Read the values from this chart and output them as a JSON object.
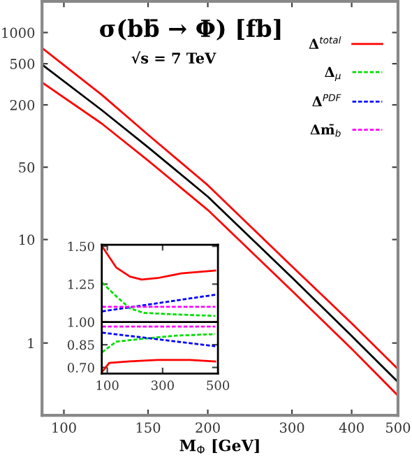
{
  "chart_data": [
    {
      "type": "line",
      "title": "σ(bb̄ → Φ) [fb]",
      "subtitle": "√s = 7 TeV",
      "xlabel": "M$_{Φ}$ [GeV]",
      "log": "xy",
      "xlim": [
        90,
        500
      ],
      "xticks": [
        100,
        150,
        200,
        300,
        400,
        500
      ],
      "ylim": [
        0.2,
        2000
      ],
      "yticks": [
        1,
        10,
        50,
        200,
        500,
        1000
      ],
      "grid": false,
      "series": [
        {
          "color": "#ff0000",
          "line_style": "solid",
          "x": [
            90,
            120,
            150,
            200,
            300,
            400,
            500
          ],
          "values": [
            710,
            250,
            103,
            33.5,
            5.5,
            1.55,
            0.56
          ]
        },
        {
          "color": "#000000",
          "line_style": "solid",
          "x": [
            90,
            120,
            150,
            200,
            300,
            400,
            500
          ],
          "values": [
            490,
            178,
            78,
            26,
            4.3,
            1.17,
            0.42
          ]
        },
        {
          "color": "#ff0000",
          "line_style": "solid",
          "x": [
            90,
            120,
            150,
            200,
            300,
            400,
            500
          ],
          "values": [
            330,
            132,
            58,
            19.3,
            3.2,
            0.88,
            0.31
          ]
        }
      ]
    },
    {
      "type": "line",
      "xlim": [
        80,
        500
      ],
      "xticks": [
        100,
        300,
        500
      ],
      "ylim": [
        0.66,
        1.51
      ],
      "yticks": [
        {
          "value": 0.7,
          "label": "0.70"
        },
        0.85,
        {
          "value": 1.0,
          "label": "1.00"
        },
        1.25,
        {
          "value": 1.5,
          "label": "1.50"
        }
      ],
      "grid": false,
      "legend": "top right",
      "ref_lines": [
        {
          "axis": "y",
          "value": 1.0,
          "color": "#000000",
          "line_style": "solid"
        }
      ],
      "series": [
        {
          "name": "Δ$^{total}$",
          "color": "#ff0000",
          "line_style": "solid",
          "x": [
            81,
            132,
            182,
            224,
            282,
            365,
            490
          ],
          "values": [
            1.5,
            1.36,
            1.3,
            1.28,
            1.29,
            1.32,
            1.34
          ]
        },
        {
          "color": "#ff0000",
          "line_style": "solid",
          "x": [
            81,
            107,
            182,
            282,
            398,
            490
          ],
          "values": [
            0.67,
            0.73,
            0.74,
            0.75,
            0.75,
            0.74
          ]
        },
        {
          "name": "Δ$_{μ}$",
          "color": "#00dd00",
          "line_style": "dashed",
          "x": [
            81,
            132,
            182,
            232,
            348,
            490
          ],
          "values": [
            1.26,
            1.17,
            1.09,
            1.06,
            1.05,
            1.04
          ]
        },
        {
          "color": "#00dd00",
          "line_style": "dashed",
          "x": [
            81,
            132,
            232,
            348,
            490
          ],
          "values": [
            0.8,
            0.87,
            0.89,
            0.91,
            0.92
          ]
        },
        {
          "name": "Δ$^{PDF}$",
          "color": "#0000ff",
          "line_style": "dashed",
          "x": [
            81,
            490
          ],
          "values": [
            1.07,
            1.18
          ]
        },
        {
          "color": "#0000ff",
          "line_style": "dashed",
          "x": [
            81,
            490
          ],
          "values": [
            0.93,
            0.84
          ]
        },
        {
          "name": "Δm̄$_{b}$",
          "color": "#ff00ff",
          "line_style": "dashed",
          "x": [
            81,
            490
          ],
          "values": [
            1.1,
            1.1
          ]
        },
        {
          "color": "#ff00ff",
          "line_style": "dashed",
          "x": [
            81,
            490
          ],
          "values": [
            0.97,
            0.97
          ]
        }
      ]
    }
  ]
}
